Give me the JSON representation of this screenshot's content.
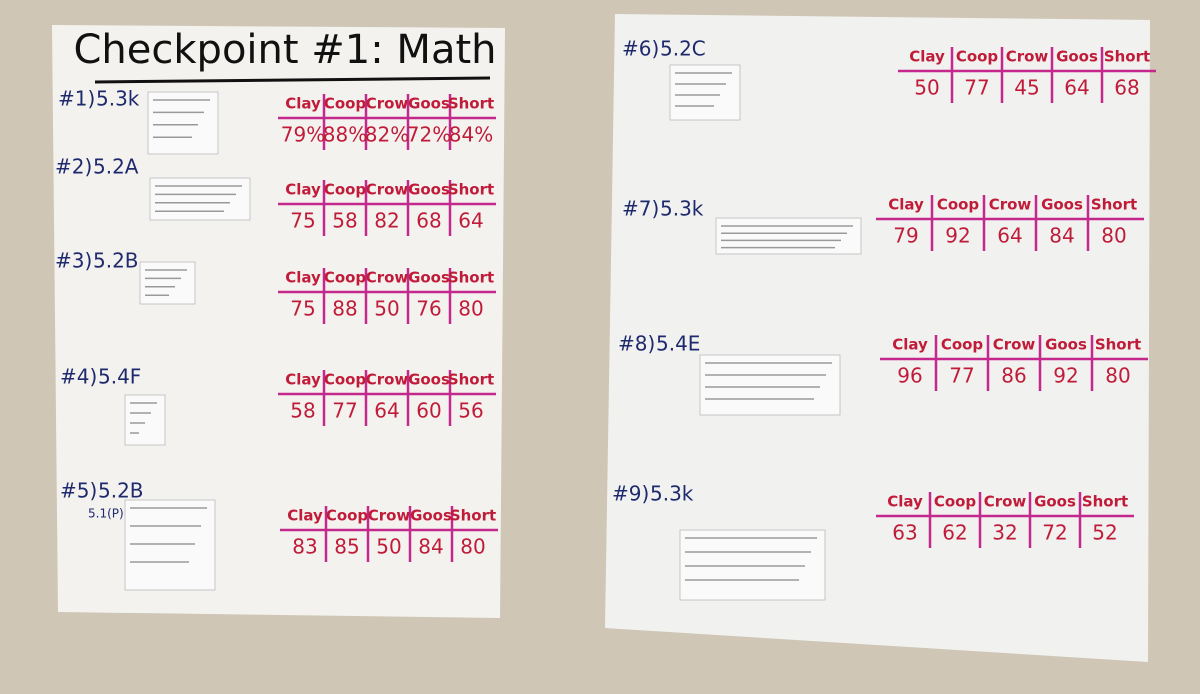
{
  "posters": [
    {
      "title": "Checkpoint #1: Math",
      "items": [
        {
          "label": "#1)",
          "standard": "5.3k",
          "headers": [
            "Clay",
            "Coop",
            "Crow",
            "Goos",
            "Short"
          ],
          "scores": [
            "79%",
            "88%",
            "82%",
            "72%",
            "84%"
          ]
        },
        {
          "label": "#2)",
          "standard": "5.2A",
          "headers": [
            "Clay",
            "Coop",
            "Crow",
            "Goos",
            "Short"
          ],
          "scores": [
            "75",
            "58",
            "82",
            "68",
            "64"
          ]
        },
        {
          "label": "#3)",
          "standard": "5.2B",
          "headers": [
            "Clay",
            "Coop",
            "Crow",
            "Goos",
            "Short"
          ],
          "scores": [
            "75",
            "88",
            "50",
            "76",
            "80"
          ]
        },
        {
          "label": "#4)",
          "standard": "5.4F",
          "headers": [
            "Clay",
            "Coop",
            "Crow",
            "Goos",
            "Short"
          ],
          "scores": [
            "58",
            "77",
            "64",
            "60",
            "56"
          ]
        },
        {
          "label": "#5)",
          "standard": "5.2B",
          "note": "5.1(P)",
          "headers": [
            "Clay",
            "Coop",
            "Crow",
            "Goos",
            "Short"
          ],
          "scores": [
            "83",
            "85",
            "50",
            "84",
            "80"
          ]
        }
      ]
    },
    {
      "items": [
        {
          "label": "#6)",
          "standard": "5.2C",
          "headers": [
            "Clay",
            "Coop",
            "Crow",
            "Goos",
            "Short"
          ],
          "scores": [
            "50",
            "77",
            "45",
            "64",
            "68"
          ]
        },
        {
          "label": "#7)",
          "standard": "5.3k",
          "headers": [
            "Clay",
            "Coop",
            "Crow",
            "Goos",
            "Short"
          ],
          "scores": [
            "79",
            "92",
            "64",
            "84",
            "80"
          ]
        },
        {
          "label": "#8)",
          "standard": "5.4E",
          "headers": [
            "Clay",
            "Coop",
            "Crow",
            "Goos",
            "Short"
          ],
          "scores": [
            "96",
            "77",
            "86",
            "92",
            "80"
          ]
        },
        {
          "label": "#9)",
          "standard": "5.3k",
          "headers": [
            "Clay",
            "Coop",
            "Crow",
            "Goos",
            "Short"
          ],
          "scores": [
            "63",
            "62",
            "32",
            "72",
            "52"
          ]
        }
      ]
    }
  ]
}
